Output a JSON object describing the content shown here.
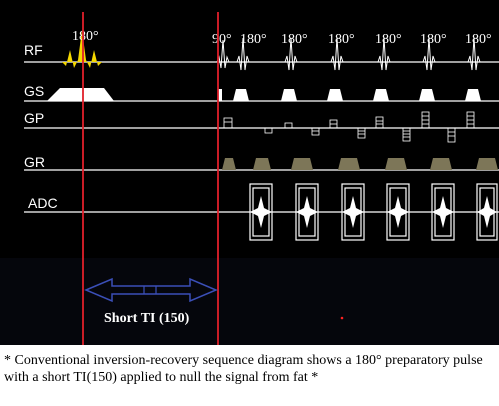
{
  "rows": [
    {
      "id": "rf",
      "label": "RF"
    },
    {
      "id": "gs",
      "label": "GS"
    },
    {
      "id": "gp",
      "label": "GP"
    },
    {
      "id": "gr",
      "label": "GR"
    },
    {
      "id": "adc",
      "label": "ADC"
    }
  ],
  "pulse_labels": {
    "inversion": "180°",
    "excitation": "90°",
    "refocus": [
      "180°",
      "180°",
      "180°",
      "180°",
      "180°",
      "180°"
    ]
  },
  "ti_label": "Short TI (150)",
  "caption": "* Conventional inversion-recovery sequence diagram shows a 180° preparatory pulse with a short TI(150) applied to null the signal from fat *",
  "colors": {
    "background": "#000000",
    "marker_line": "#e0202a",
    "arrow": "#3b4fb8",
    "inversion_pulse": "#f5d800",
    "gr_lobe": "#7d7658",
    "trace": "#ffffff",
    "dot": "#ff2020"
  }
}
